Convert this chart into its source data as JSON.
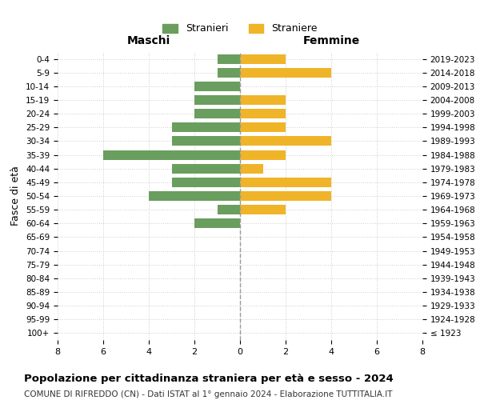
{
  "age_groups": [
    "100+",
    "95-99",
    "90-94",
    "85-89",
    "80-84",
    "75-79",
    "70-74",
    "65-69",
    "60-64",
    "55-59",
    "50-54",
    "45-49",
    "40-44",
    "35-39",
    "30-34",
    "25-29",
    "20-24",
    "15-19",
    "10-14",
    "5-9",
    "0-4"
  ],
  "birth_years": [
    "≤ 1923",
    "1924-1928",
    "1929-1933",
    "1934-1938",
    "1939-1943",
    "1944-1948",
    "1949-1953",
    "1954-1958",
    "1959-1963",
    "1964-1968",
    "1969-1973",
    "1974-1978",
    "1979-1983",
    "1984-1988",
    "1989-1993",
    "1994-1998",
    "1999-2003",
    "2004-2008",
    "2009-2013",
    "2014-2018",
    "2019-2023"
  ],
  "males": [
    0,
    0,
    0,
    0,
    0,
    0,
    0,
    0,
    2,
    1,
    4,
    3,
    3,
    6,
    3,
    3,
    2,
    2,
    2,
    1,
    1
  ],
  "females": [
    0,
    0,
    0,
    0,
    0,
    0,
    0,
    0,
    0,
    2,
    4,
    4,
    1,
    2,
    4,
    2,
    2,
    2,
    0,
    4,
    2
  ],
  "male_color": "#6a9e5e",
  "female_color": "#f0b429",
  "center_line_color": "#999999",
  "grid_color": "#cccccc",
  "title": "Popolazione per cittadinanza straniera per età e sesso - 2024",
  "subtitle": "COMUNE DI RIFREDDO (CN) - Dati ISTAT al 1° gennaio 2024 - Elaborazione TUTTITALIA.IT",
  "xlabel_left": "Maschi",
  "xlabel_right": "Femmine",
  "ylabel_left": "Fasce di età",
  "legend_male": "Stranieri",
  "legend_female": "Straniere",
  "xlim": 8,
  "background_color": "#ffffff"
}
